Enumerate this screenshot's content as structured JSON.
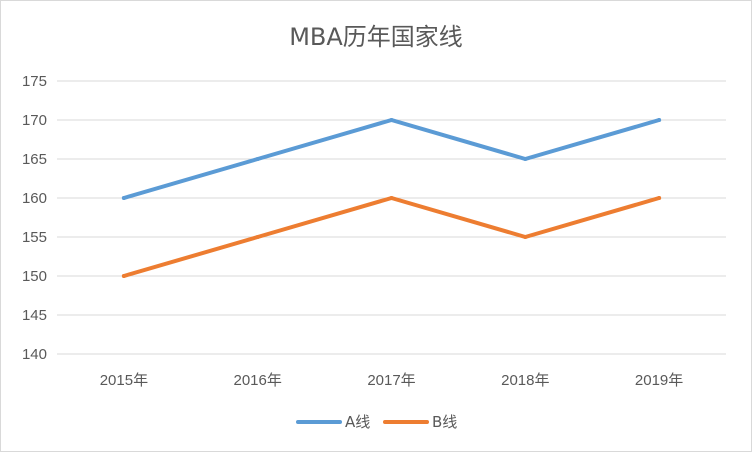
{
  "chart_data": {
    "type": "line",
    "title": "MBA历年国家线",
    "categories": [
      "2015年",
      "2016年",
      "2017年",
      "2018年",
      "2019年"
    ],
    "series": [
      {
        "name": "A线",
        "values": [
          160,
          165,
          170,
          165,
          170
        ],
        "color": "#5b9bd5"
      },
      {
        "name": "B线",
        "values": [
          150,
          155,
          160,
          155,
          160
        ],
        "color": "#ed7d31"
      }
    ],
    "ylim": [
      140,
      175
    ],
    "yticks": [
      140,
      145,
      150,
      155,
      160,
      165,
      170,
      175
    ],
    "grid": true,
    "legend_position": "bottom",
    "xlabel": "",
    "ylabel": ""
  }
}
